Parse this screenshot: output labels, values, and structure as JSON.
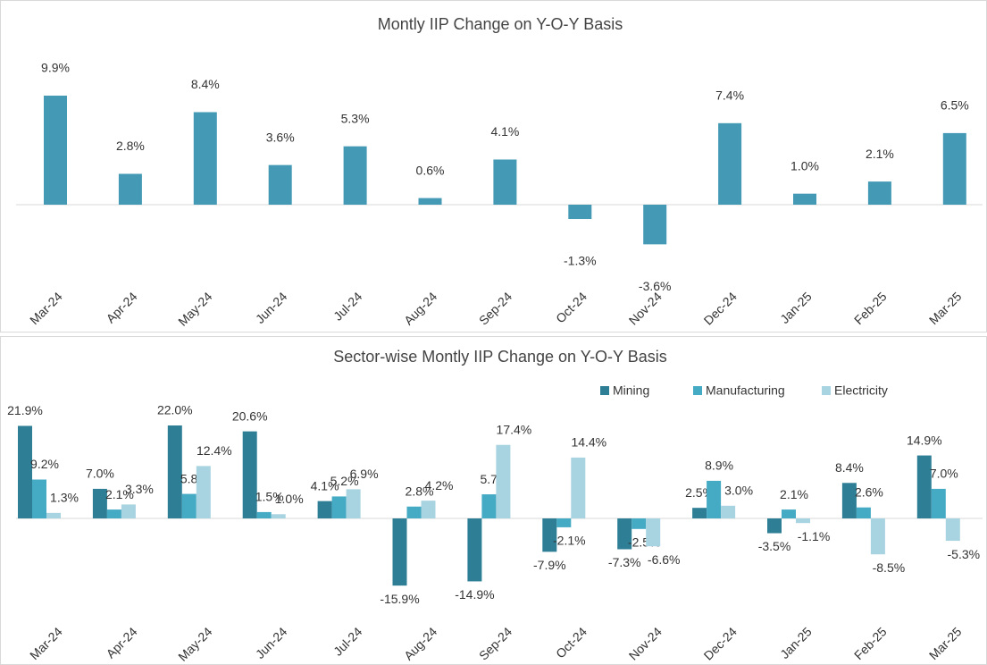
{
  "chart_data": [
    {
      "type": "bar",
      "title": "Montly IIP Change on Y-O-Y Basis",
      "categories": [
        "Mar-24",
        "Apr-24",
        "May-24",
        "Jun-24",
        "Jul-24",
        "Aug-24",
        "Sep-24",
        "Oct-24",
        "Nov-24",
        "Dec-24",
        "Jan-25",
        "Feb-25",
        "Mar-25"
      ],
      "values": [
        9.9,
        2.8,
        8.4,
        3.6,
        5.3,
        0.6,
        4.1,
        -1.3,
        -3.6,
        7.4,
        1.0,
        2.1,
        6.5
      ],
      "value_labels": [
        "9.9%",
        "2.8%",
        "8.4%",
        "3.6%",
        "5.3%",
        "0.6%",
        "4.1%",
        "-1.3%",
        "-3.6%",
        "7.4%",
        "1.0%",
        "2.1%",
        "6.5%"
      ],
      "color": "#4499b5"
    },
    {
      "type": "grouped_bar",
      "title": "Sector-wise Montly IIP Change on Y-O-Y Basis",
      "categories": [
        "Mar-24",
        "Apr-24",
        "May-24",
        "Jun-24",
        "Jul-24",
        "Aug-24",
        "Sep-24",
        "Oct-24",
        "Nov-24",
        "Dec-24",
        "Jan-25",
        "Feb-25",
        "Mar-25"
      ],
      "series": [
        {
          "name": "Mining",
          "color": "#2e7f96",
          "values": [
            21.9,
            7.0,
            22.0,
            20.6,
            4.1,
            -15.9,
            -14.9,
            -7.9,
            -7.3,
            2.5,
            -3.5,
            8.4,
            14.9
          ],
          "value_labels": [
            "21.9%",
            "7.0%",
            "22.0%",
            "20.6%",
            "4.1%",
            "-15.9%",
            "-14.9%",
            "-7.9%",
            "-7.3%",
            "2.5%",
            "-3.5%",
            "8.4%",
            "14.9%"
          ]
        },
        {
          "name": "Manufacturing",
          "color": "#45aac4",
          "values": [
            9.2,
            2.1,
            5.8,
            1.5,
            5.2,
            2.8,
            5.7,
            -2.1,
            -2.5,
            8.9,
            2.1,
            2.6,
            7.0
          ],
          "value_labels": [
            "9.2%",
            "2.1%",
            "5.8%",
            "1.5%",
            "5.2%",
            "2.8%",
            "5.7%",
            "-2.1%",
            "-2.5%",
            "8.9%",
            "2.1%",
            "2.6%",
            "7.0%"
          ]
        },
        {
          "name": "Electricity",
          "color": "#a8d3e0",
          "values": [
            1.3,
            3.3,
            12.4,
            1.0,
            6.9,
            4.2,
            17.4,
            14.4,
            -6.6,
            3.0,
            -1.1,
            -8.5,
            -5.3
          ],
          "value_labels": [
            "1.3%",
            "3.3%",
            "12.4%",
            "1.0%",
            "6.9%",
            "4.2%",
            "17.4%",
            "14.4%",
            "-6.6%",
            "3.0%",
            "-1.1%",
            "-8.5%",
            "-5.3%"
          ]
        }
      ],
      "legend": "top-right"
    }
  ]
}
